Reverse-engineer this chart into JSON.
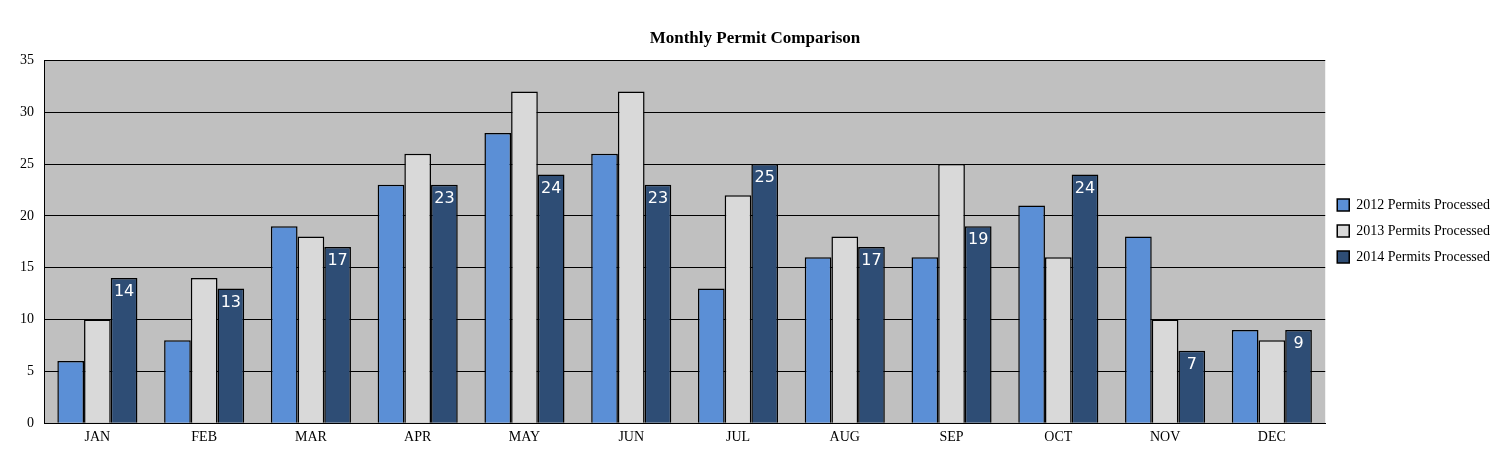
{
  "chart_data": {
    "type": "bar",
    "title": "Monthly Permit Comparison",
    "categories": [
      "JAN",
      "FEB",
      "MAR",
      "APR",
      "MAY",
      "JUN",
      "JUL",
      "AUG",
      "SEP",
      "OCT",
      "NOV",
      "DEC"
    ],
    "series": [
      {
        "name": "2012 Permits Processed",
        "color": "#5b8fd6",
        "values": [
          6,
          8,
          19,
          23,
          28,
          26,
          13,
          16,
          16,
          21,
          18,
          9
        ]
      },
      {
        "name": "2013 Permits Processed",
        "color": "#d9d9d9",
        "values": [
          10,
          14,
          18,
          26,
          32,
          32,
          22,
          18,
          25,
          16,
          10,
          8
        ]
      },
      {
        "name": "2014 Permits Processed",
        "color": "#2e4d75",
        "values": [
          14,
          13,
          17,
          23,
          24,
          23,
          25,
          17,
          19,
          24,
          7,
          9
        ],
        "value_labels": [
          "14",
          "13",
          "17",
          "23",
          "24",
          "23",
          "25",
          "17",
          "19",
          "24",
          "7",
          "9"
        ]
      }
    ],
    "ylim": [
      0,
      35
    ],
    "yticks": [
      0,
      5,
      10,
      15,
      20,
      25,
      30,
      35
    ],
    "grid": "y",
    "legend": "right"
  }
}
